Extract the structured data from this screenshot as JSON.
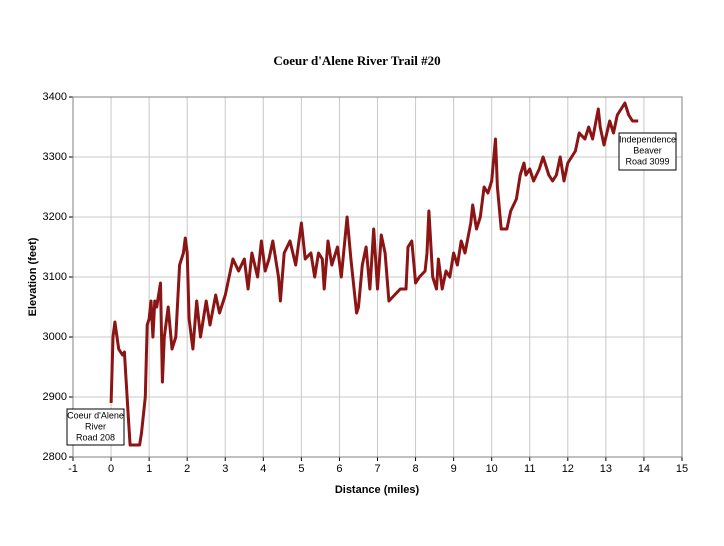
{
  "chart_data": {
    "type": "line",
    "title": "Coeur d'Alene River Trail #20",
    "x_label": "Distance (miles)",
    "y_label": "Elevation (feet)",
    "xlim": [
      -1,
      15
    ],
    "xticks": [
      -1,
      0,
      1,
      2,
      3,
      4,
      5,
      6,
      7,
      8,
      9,
      10,
      11,
      12,
      13,
      14,
      15
    ],
    "ylim": [
      2800,
      3400
    ],
    "yticks": [
      2800,
      2900,
      3000,
      3100,
      3200,
      3300,
      3400
    ],
    "grid": true,
    "color": "#8b1414",
    "x": [
      0,
      0.05,
      0.1,
      0.2,
      0.3,
      0.35,
      0.45,
      0.5,
      0.6,
      0.75,
      0.8,
      0.9,
      0.95,
      1.0,
      1.05,
      1.1,
      1.15,
      1.2,
      1.3,
      1.35,
      1.4,
      1.5,
      1.6,
      1.7,
      1.8,
      1.9,
      1.95,
      2.0,
      2.05,
      2.15,
      2.25,
      2.35,
      2.5,
      2.6,
      2.75,
      2.85,
      3.0,
      3.1,
      3.2,
      3.35,
      3.5,
      3.6,
      3.7,
      3.85,
      3.95,
      4.05,
      4.15,
      4.25,
      4.4,
      4.45,
      4.55,
      4.7,
      4.85,
      5.0,
      5.1,
      5.25,
      5.35,
      5.45,
      5.55,
      5.6,
      5.7,
      5.8,
      5.95,
      6.05,
      6.2,
      6.3,
      6.45,
      6.5,
      6.6,
      6.7,
      6.8,
      6.9,
      7.0,
      7.1,
      7.2,
      7.3,
      7.45,
      7.6,
      7.75,
      7.8,
      7.9,
      8.0,
      8.1,
      8.25,
      8.3,
      8.35,
      8.45,
      8.55,
      8.6,
      8.7,
      8.8,
      8.9,
      9.0,
      9.1,
      9.2,
      9.3,
      9.45,
      9.5,
      9.6,
      9.7,
      9.8,
      9.9,
      10.0,
      10.1,
      10.15,
      10.25,
      10.4,
      10.5,
      10.65,
      10.75,
      10.85,
      10.9,
      11.0,
      11.1,
      11.25,
      11.35,
      11.5,
      11.6,
      11.7,
      11.8,
      11.9,
      12.0,
      12.1,
      12.2,
      12.3,
      12.45,
      12.55,
      12.65,
      12.8,
      12.85,
      12.95,
      13.1,
      13.2,
      13.3,
      13.5,
      13.6,
      13.7,
      13.85
    ],
    "values": [
      2890,
      3000,
      3025,
      2980,
      2970,
      2975,
      2870,
      2820,
      2820,
      2820,
      2840,
      2900,
      3020,
      3030,
      3060,
      3000,
      3060,
      3050,
      3090,
      2925,
      3000,
      3050,
      2980,
      3000,
      3120,
      3140,
      3165,
      3140,
      3030,
      2980,
      3060,
      3000,
      3060,
      3020,
      3070,
      3040,
      3070,
      3100,
      3130,
      3110,
      3130,
      3080,
      3140,
      3100,
      3160,
      3110,
      3130,
      3160,
      3100,
      3060,
      3140,
      3160,
      3120,
      3190,
      3130,
      3140,
      3100,
      3140,
      3130,
      3080,
      3160,
      3120,
      3150,
      3100,
      3200,
      3130,
      3040,
      3050,
      3120,
      3150,
      3080,
      3180,
      3080,
      3170,
      3140,
      3060,
      3070,
      3080,
      3080,
      3150,
      3160,
      3090,
      3100,
      3110,
      3140,
      3210,
      3100,
      3080,
      3130,
      3080,
      3110,
      3100,
      3140,
      3120,
      3160,
      3140,
      3190,
      3220,
      3180,
      3200,
      3250,
      3240,
      3260,
      3330,
      3250,
      3180,
      3180,
      3210,
      3230,
      3270,
      3290,
      3270,
      3280,
      3260,
      3280,
      3300,
      3270,
      3260,
      3270,
      3300,
      3260,
      3290,
      3300,
      3310,
      3340,
      3330,
      3350,
      3330,
      3380,
      3350,
      3320,
      3360,
      3340,
      3370,
      3390,
      3370,
      3360,
      3360
    ],
    "annotations": [
      {
        "lines": [
          "Coeur d'Alene",
          "River",
          "Road 208"
        ]
      },
      {
        "lines": [
          "Independence",
          "Beaver",
          "Road 3099"
        ]
      }
    ]
  }
}
